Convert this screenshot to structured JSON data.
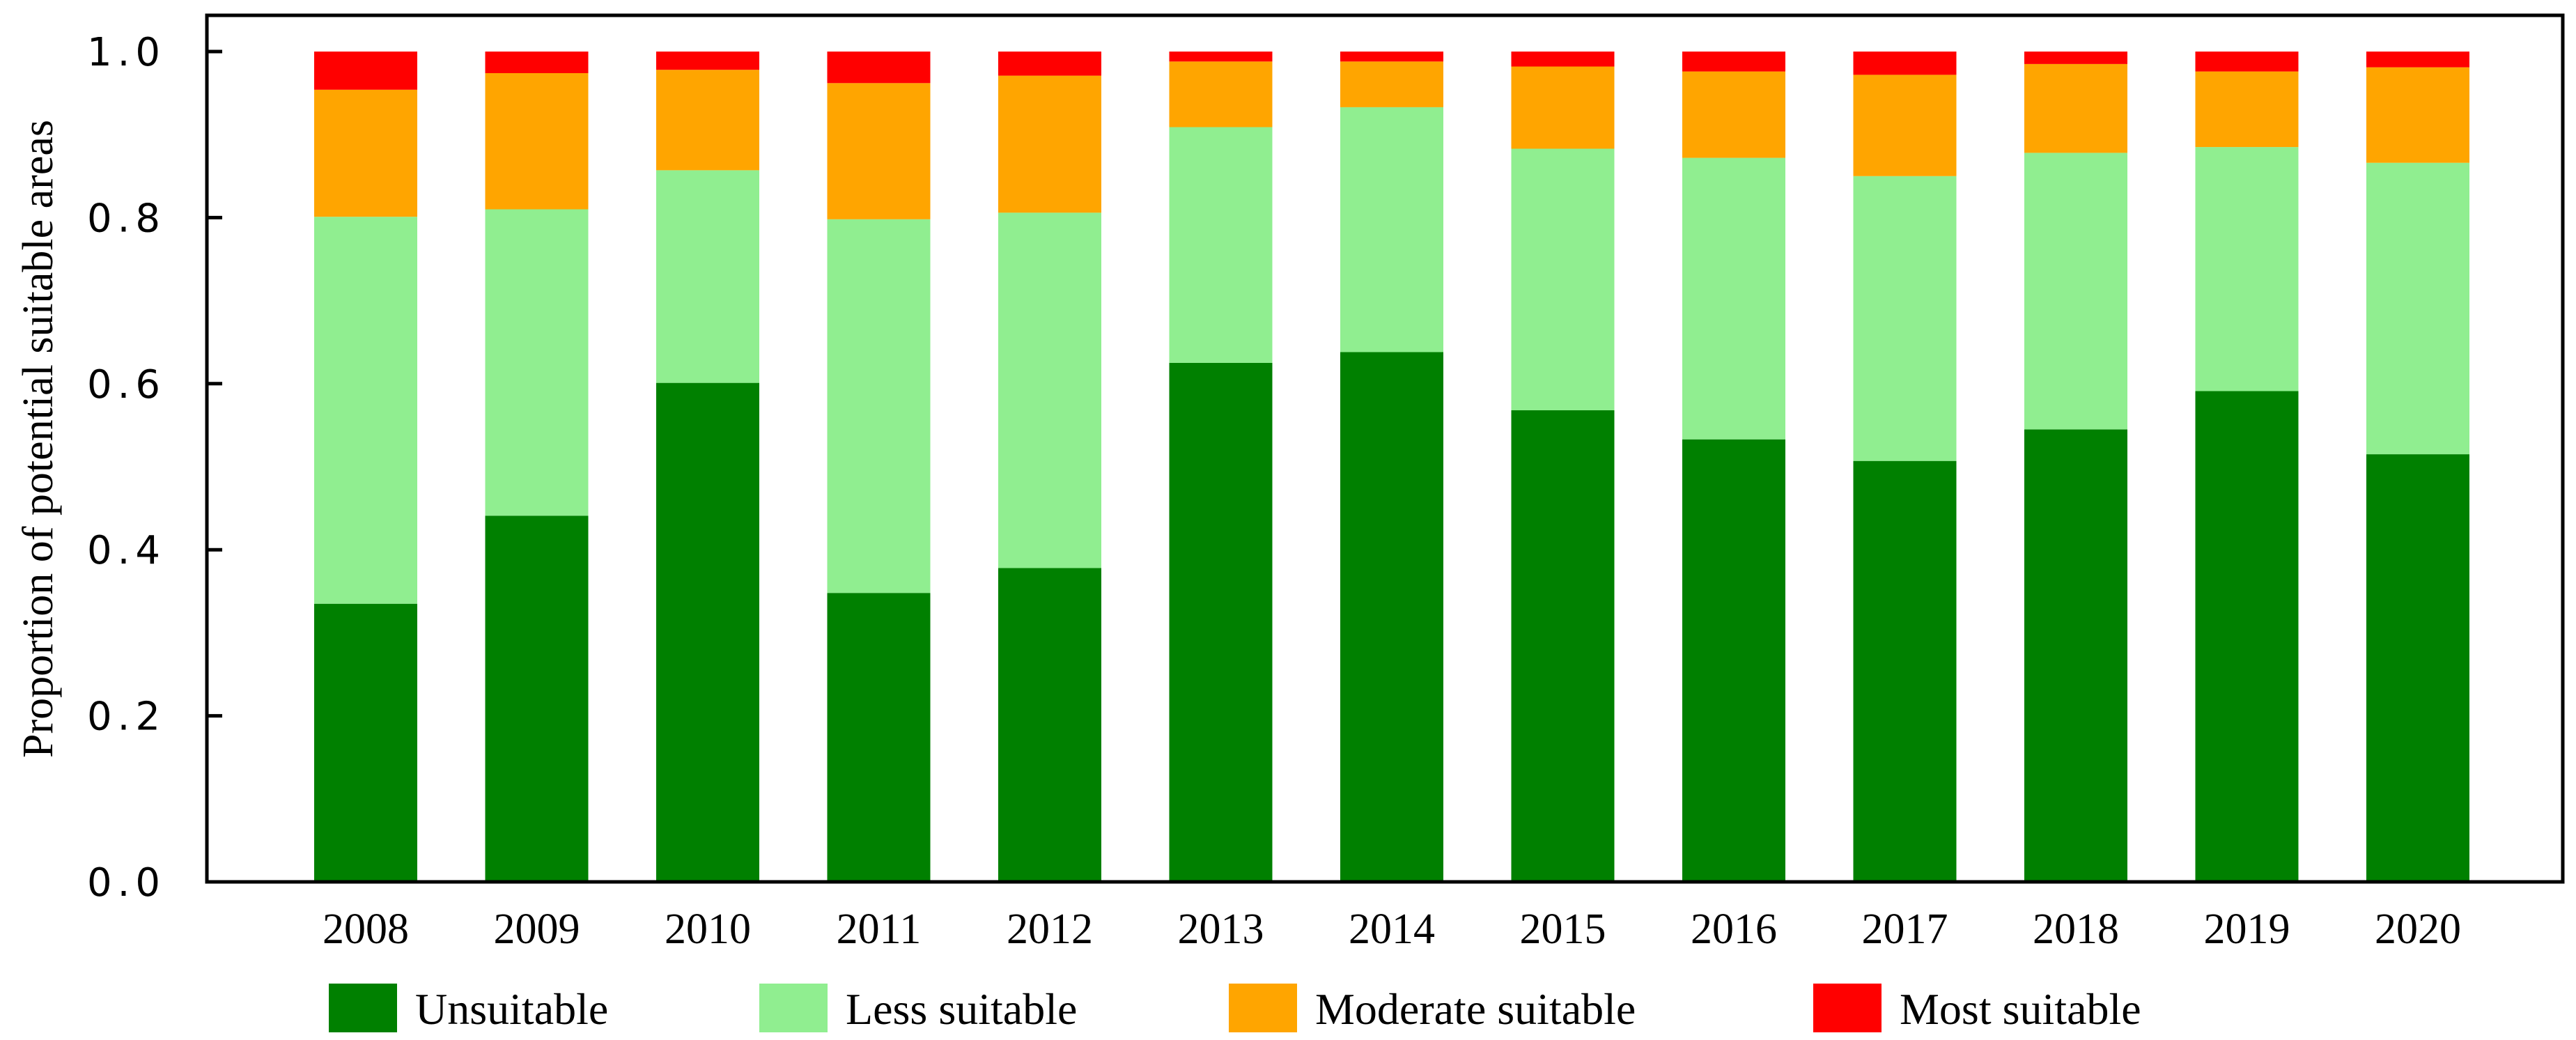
{
  "chart_data": {
    "type": "bar",
    "stacked": true,
    "title": "",
    "xlabel": "",
    "ylabel": "Proportion of potential suitable areas",
    "ylim": [
      0,
      1.0
    ],
    "yticks": [
      "0.0",
      "0.2",
      "0.4",
      "0.6",
      "0.8",
      "1.0"
    ],
    "categories": [
      "2008",
      "2009",
      "2010",
      "2011",
      "2012",
      "2013",
      "2014",
      "2015",
      "2016",
      "2017",
      "2018",
      "2019",
      "2020"
    ],
    "series": [
      {
        "name": "Unsuitable",
        "color": "#008000",
        "values": [
          0.335,
          0.441,
          0.601,
          0.348,
          0.378,
          0.625,
          0.638,
          0.568,
          0.533,
          0.507,
          0.545,
          0.591,
          0.515
        ]
      },
      {
        "name": "Less suitable",
        "color": "#90EE90",
        "values": [
          0.466,
          0.369,
          0.256,
          0.45,
          0.428,
          0.284,
          0.295,
          0.315,
          0.339,
          0.343,
          0.333,
          0.294,
          0.351
        ]
      },
      {
        "name": "Moderate suitable",
        "color": "#FFA500",
        "values": [
          0.153,
          0.164,
          0.121,
          0.164,
          0.165,
          0.079,
          0.055,
          0.099,
          0.104,
          0.122,
          0.107,
          0.091,
          0.115
        ]
      },
      {
        "name": "Most suitable",
        "color": "#FF0000",
        "values": [
          0.046,
          0.026,
          0.022,
          0.038,
          0.029,
          0.012,
          0.012,
          0.018,
          0.024,
          0.028,
          0.015,
          0.024,
          0.019
        ]
      }
    ],
    "legend_position": "bottom",
    "grid": false
  }
}
